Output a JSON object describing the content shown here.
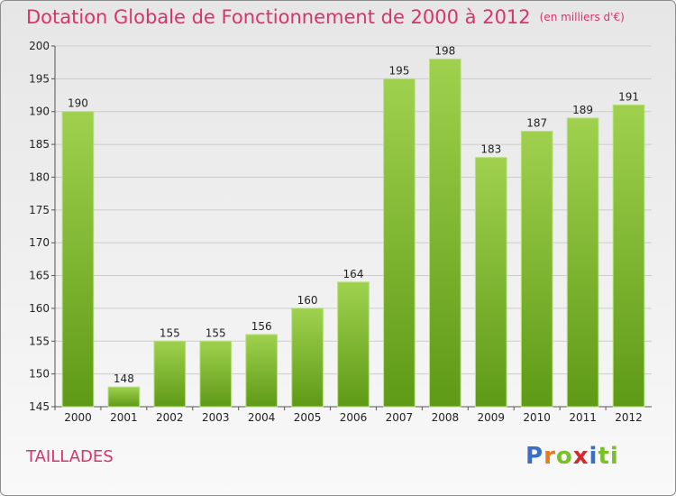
{
  "header": {
    "title": "Dotation Globale de Fonctionnement de 2000 à 2012",
    "unit": "(en milliers d'€)"
  },
  "footer": {
    "commune": "TAILLADES",
    "logo": [
      "P",
      "r",
      "o",
      "x",
      "i",
      "ti"
    ]
  },
  "colors": {
    "title": "#d9336a",
    "bar_light": "#9fd14e",
    "bar_dark": "#5e9a16",
    "grid": "#cccccc"
  },
  "chart_data": {
    "type": "bar",
    "title": "Dotation Globale de Fonctionnement de 2000 à 2012",
    "xlabel": "",
    "ylabel": "",
    "ylim": [
      145,
      200
    ],
    "yticks": [
      145,
      150,
      155,
      160,
      165,
      170,
      175,
      180,
      185,
      190,
      195,
      200
    ],
    "grid": true,
    "categories": [
      "2000",
      "2001",
      "2002",
      "2003",
      "2004",
      "2005",
      "2006",
      "2007",
      "2008",
      "2009",
      "2010",
      "2011",
      "2012"
    ],
    "values": [
      190,
      148,
      155,
      155,
      156,
      160,
      164,
      195,
      198,
      183,
      187,
      189,
      191
    ]
  }
}
